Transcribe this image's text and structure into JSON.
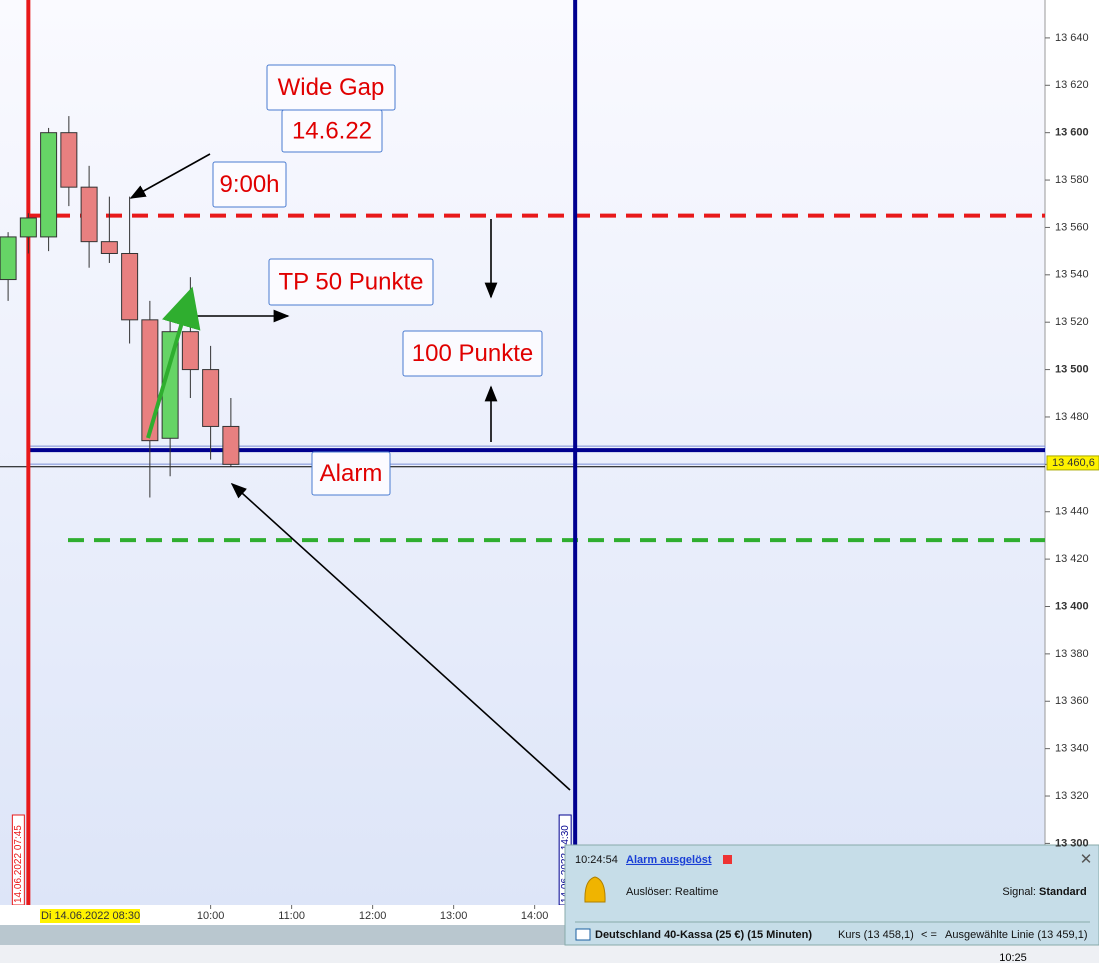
{
  "chart_data": {
    "type": "candlestick",
    "x": [
      7.5,
      7.75,
      8,
      8.25,
      8.5,
      8.75,
      9,
      9.25,
      9.5,
      9.75,
      10,
      10.25
    ],
    "open": [
      13538,
      13556,
      13556,
      13600,
      13577,
      13554,
      13549,
      13521,
      13471,
      13516,
      13500,
      13476
    ],
    "high": [
      13558,
      13566,
      13602,
      13607,
      13586,
      13573,
      13573,
      13529,
      13521,
      13539,
      13510,
      13488
    ],
    "low": [
      13529,
      13549,
      13550,
      13569,
      13543,
      13545,
      13511,
      13446,
      13455,
      13488,
      13462,
      13459
    ],
    "close": [
      13556,
      13564,
      13600,
      13577,
      13554,
      13549,
      13521,
      13470,
      13516,
      13500,
      13476,
      13460
    ],
    "up_color": "#66d466",
    "down_color": "#e88080",
    "xlim": [
      7.4,
      20.3
    ],
    "xticks": [
      {
        "value": 10,
        "label": "10:00"
      },
      {
        "value": 11,
        "label": "11:00"
      },
      {
        "value": 12,
        "label": "12:00"
      },
      {
        "value": 13,
        "label": "13:00"
      },
      {
        "value": 14,
        "label": "14:00"
      }
    ],
    "ylim": [
      13274,
      13656
    ],
    "yticks": [
      {
        "value": 13640,
        "label": "13 640"
      },
      {
        "value": 13620,
        "label": "13 620"
      },
      {
        "value": 13600,
        "label": "13 600"
      },
      {
        "value": 13580,
        "label": "13 580"
      },
      {
        "value": 13560,
        "label": "13 560"
      },
      {
        "value": 13540,
        "label": "13 540"
      },
      {
        "value": 13520,
        "label": "13 520"
      },
      {
        "value": 13500,
        "label": "13 500"
      },
      {
        "value": 13480,
        "label": "13 480"
      },
      {
        "value": 13460,
        "label": "13 460"
      },
      {
        "value": 13440,
        "label": "13 440"
      },
      {
        "value": 13420,
        "label": "13 420"
      },
      {
        "value": 13400,
        "label": "13 400"
      },
      {
        "value": 13380,
        "label": "13 380"
      },
      {
        "value": 13360,
        "label": "13 360"
      },
      {
        "value": 13340,
        "label": "13 340"
      },
      {
        "value": 13320,
        "label": "13 320"
      },
      {
        "value": 13300,
        "label": "13 300"
      }
    ],
    "lines": [
      {
        "value": 13565,
        "color": "#e8191a",
        "style": "dashed"
      },
      {
        "value": 13466,
        "color": "#00008f",
        "style": "solid"
      },
      {
        "value": 13428,
        "color": "#2fae2f",
        "style": "dashed"
      },
      {
        "value": 13459,
        "color": "#000000",
        "style": "thin"
      }
    ],
    "vlines": [
      {
        "x": 7.75,
        "color": "#e8191a",
        "label": "14.06.2022 07:45"
      },
      {
        "x": 14.5,
        "color": "#00008f",
        "label": "14.06.2022 14:30"
      }
    ],
    "last_price": {
      "value": 13460.6,
      "label": "13 460,6"
    },
    "cursor_label": "Di 14.06.2022 08:30",
    "annotations": [
      {
        "text": "Wide Gap"
      },
      {
        "text": "14.6.22"
      },
      {
        "text": "9:00h"
      },
      {
        "text": "TP 50 Punkte"
      },
      {
        "text": "100 Punkte"
      },
      {
        "text": "Alarm"
      }
    ]
  },
  "popup": {
    "time": "10:24:54",
    "title": "Alarm ausgelöst",
    "trigger": "Auslöser: Realtime",
    "signal_label": "Signal:",
    "signal_value": "Standard",
    "instrument": "Deutschland 40-Kassa (25 €) (15 Minuten)",
    "price": "Kurs (13 458,1)",
    "operator": "< =",
    "line": "Ausgewählte Linie (13 459,1)"
  },
  "taskbar": {
    "clock": "10:25"
  }
}
